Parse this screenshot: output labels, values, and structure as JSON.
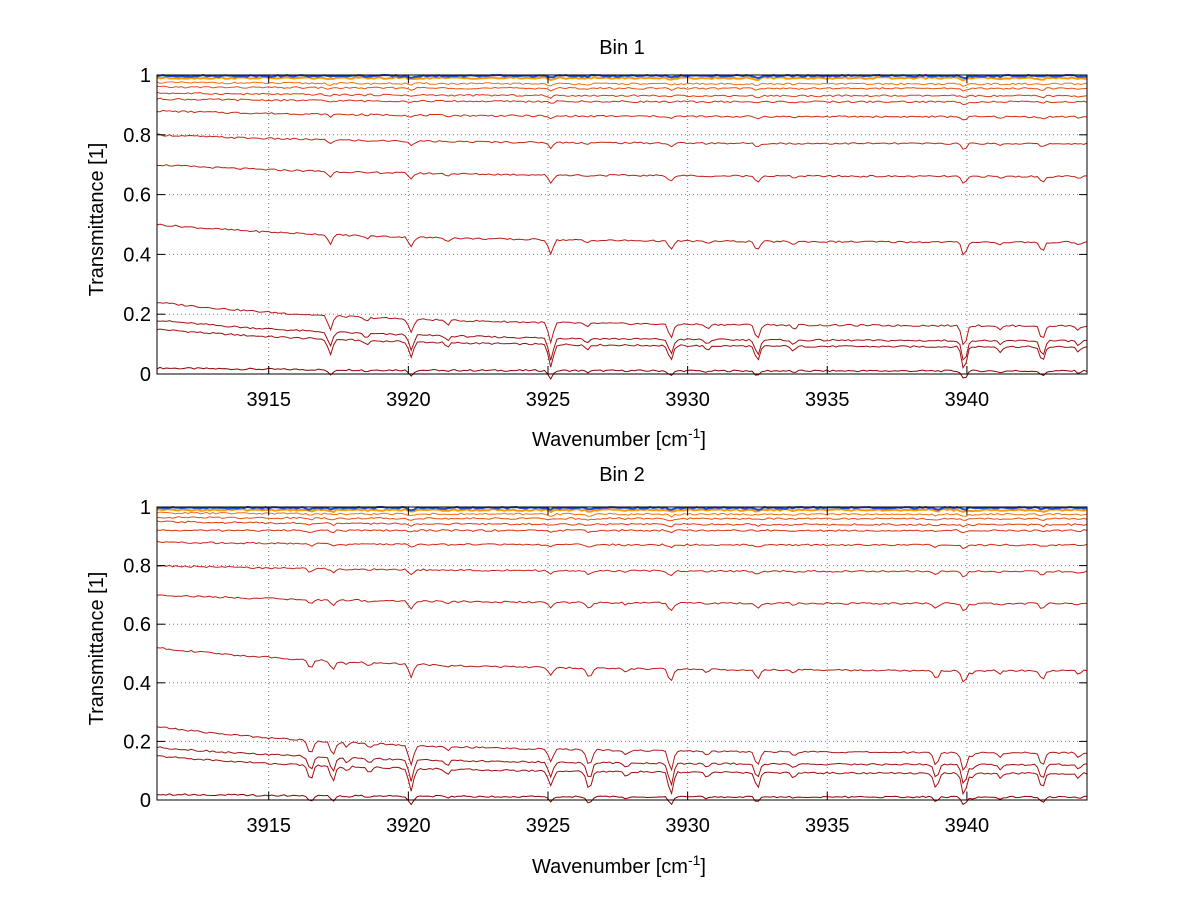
{
  "chart_data": [
    {
      "type": "line",
      "title": "Bin 1",
      "xlabel": "Wavenumber [cm",
      "xlabel_sup": "-1",
      "xlabel_tail": "]",
      "ylabel": "Transmittance [1]",
      "xlim": [
        3911,
        3944.3
      ],
      "ylim": [
        0,
        1
      ],
      "grid": true,
      "xticks": [
        3915,
        3920,
        3925,
        3930,
        3935,
        3940
      ],
      "xtick_labels": [
        "3915",
        "3920",
        "3925",
        "3930",
        "3935",
        "3940"
      ],
      "yticks": [
        0,
        0.2,
        0.4,
        0.6,
        0.8,
        1
      ],
      "ytick_labels": [
        "0",
        "0.2",
        "0.4",
        "0.6",
        "0.8",
        "1"
      ],
      "absorption_lines": [
        3917.2,
        3920.1,
        3925.1,
        3929.4,
        3932.5,
        3939.9,
        3942.7
      ],
      "series": [
        {
          "name": "curve-1",
          "start": 0.02,
          "end": 0.01,
          "color": "#8b0000"
        },
        {
          "name": "curve-2",
          "start": 0.15,
          "end": 0.09,
          "color": "#a01010"
        },
        {
          "name": "curve-3",
          "start": 0.18,
          "end": 0.11,
          "color": "#a01010"
        },
        {
          "name": "curve-4",
          "start": 0.24,
          "end": 0.16,
          "color": "#b01818"
        },
        {
          "name": "curve-5",
          "start": 0.5,
          "end": 0.44,
          "color": "#b81c14"
        },
        {
          "name": "curve-6",
          "start": 0.7,
          "end": 0.66,
          "color": "#c02014"
        },
        {
          "name": "curve-7",
          "start": 0.8,
          "end": 0.77,
          "color": "#c82414"
        },
        {
          "name": "curve-8",
          "start": 0.88,
          "end": 0.86,
          "color": "#d02a12"
        },
        {
          "name": "curve-9",
          "start": 0.92,
          "end": 0.91,
          "color": "#d83010"
        },
        {
          "name": "curve-10",
          "start": 0.94,
          "end": 0.93,
          "color": "#e03a10"
        },
        {
          "name": "curve-11",
          "start": 0.96,
          "end": 0.955,
          "color": "#e8500f"
        },
        {
          "name": "curve-12",
          "start": 0.975,
          "end": 0.97,
          "color": "#f0700f"
        },
        {
          "name": "curve-13",
          "start": 0.99,
          "end": 0.99,
          "color": "#ff9900"
        },
        {
          "name": "curve-14",
          "start": 0.997,
          "end": 0.997,
          "color": "#1a50d0"
        }
      ]
    },
    {
      "type": "line",
      "title": "Bin 2",
      "xlabel": "Wavenumber [cm",
      "xlabel_sup": "-1",
      "xlabel_tail": "]",
      "ylabel": "Transmittance [1]",
      "xlim": [
        3911,
        3944.3
      ],
      "ylim": [
        0,
        1
      ],
      "grid": true,
      "xticks": [
        3915,
        3920,
        3925,
        3930,
        3935,
        3940
      ],
      "xtick_labels": [
        "3915",
        "3920",
        "3925",
        "3930",
        "3935",
        "3940"
      ],
      "yticks": [
        0,
        0.2,
        0.4,
        0.6,
        0.8,
        1
      ],
      "ytick_labels": [
        "0",
        "0.2",
        "0.4",
        "0.6",
        "0.8",
        "1"
      ],
      "absorption_lines": [
        3916.5,
        3917.3,
        3920.1,
        3925.1,
        3926.5,
        3929.4,
        3932.5,
        3938.9,
        3939.9,
        3942.7
      ],
      "series": [
        {
          "name": "curve-1",
          "start": 0.02,
          "end": 0.01,
          "color": "#8b0000"
        },
        {
          "name": "curve-2",
          "start": 0.15,
          "end": 0.09,
          "color": "#a01010"
        },
        {
          "name": "curve-3",
          "start": 0.18,
          "end": 0.12,
          "color": "#a01010"
        },
        {
          "name": "curve-4",
          "start": 0.25,
          "end": 0.16,
          "color": "#b01818"
        },
        {
          "name": "curve-5",
          "start": 0.52,
          "end": 0.44,
          "color": "#b81c14"
        },
        {
          "name": "curve-6",
          "start": 0.7,
          "end": 0.67,
          "color": "#c02014"
        },
        {
          "name": "curve-7",
          "start": 0.8,
          "end": 0.78,
          "color": "#c82414"
        },
        {
          "name": "curve-8",
          "start": 0.88,
          "end": 0.87,
          "color": "#d02a12"
        },
        {
          "name": "curve-9",
          "start": 0.92,
          "end": 0.92,
          "color": "#d83010"
        },
        {
          "name": "curve-10",
          "start": 0.95,
          "end": 0.94,
          "color": "#e03a10"
        },
        {
          "name": "curve-11",
          "start": 0.965,
          "end": 0.96,
          "color": "#e8500f"
        },
        {
          "name": "curve-12",
          "start": 0.98,
          "end": 0.975,
          "color": "#f0700f"
        },
        {
          "name": "curve-13",
          "start": 0.99,
          "end": 0.99,
          "color": "#ff9900"
        },
        {
          "name": "curve-14",
          "start": 0.997,
          "end": 0.997,
          "color": "#1a50d0"
        }
      ]
    }
  ]
}
